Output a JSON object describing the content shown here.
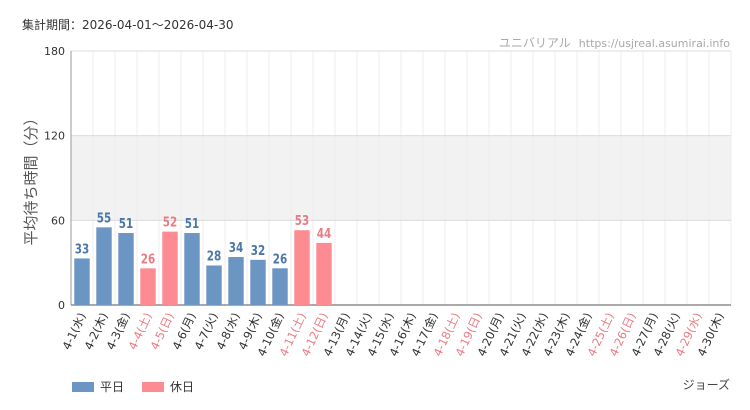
{
  "header": {
    "period": "集計期間：2026-04-01～2026-04-30",
    "source_name": "ユニバリアル",
    "source_url": "https://usjreal.asumirai.info"
  },
  "colors": {
    "weekday": "#6b95c3",
    "holiday": "#fc8c92",
    "weekday_label": "#4a77a8",
    "holiday_label": "#e97c84",
    "band": "#f2f2f2"
  },
  "legend": {
    "weekday": "平日",
    "holiday": "休日"
  },
  "attraction": "ジョーズ",
  "chart_data": {
    "type": "bar",
    "ylabel": "平均待ち時間（分）",
    "ylim": [
      0,
      180
    ],
    "yticks": [
      0,
      60,
      120,
      180
    ],
    "shaded_band": [
      60,
      120
    ],
    "grid": true,
    "legend_position": "bottom-left",
    "categories": [
      "4-1(水)",
      "4-2(木)",
      "4-3(金)",
      "4-4(土)",
      "4-5(日)",
      "4-6(月)",
      "4-7(火)",
      "4-8(水)",
      "4-9(木)",
      "4-10(金)",
      "4-11(土)",
      "4-12(日)",
      "4-13(月)",
      "4-14(火)",
      "4-15(水)",
      "4-16(木)",
      "4-17(金)",
      "4-18(土)",
      "4-19(日)",
      "4-20(月)",
      "4-21(火)",
      "4-22(水)",
      "4-23(木)",
      "4-24(金)",
      "4-25(土)",
      "4-26(日)",
      "4-27(月)",
      "4-28(火)",
      "4-29(水)",
      "4-30(木)"
    ],
    "holiday": [
      false,
      false,
      false,
      true,
      true,
      false,
      false,
      false,
      false,
      false,
      true,
      true,
      false,
      false,
      false,
      false,
      false,
      true,
      true,
      false,
      false,
      false,
      false,
      false,
      true,
      true,
      false,
      false,
      true,
      false
    ],
    "values": [
      33,
      55,
      51,
      26,
      52,
      51,
      28,
      34,
      32,
      26,
      53,
      44,
      null,
      null,
      null,
      null,
      null,
      null,
      null,
      null,
      null,
      null,
      null,
      null,
      null,
      null,
      null,
      null,
      null,
      null
    ]
  }
}
